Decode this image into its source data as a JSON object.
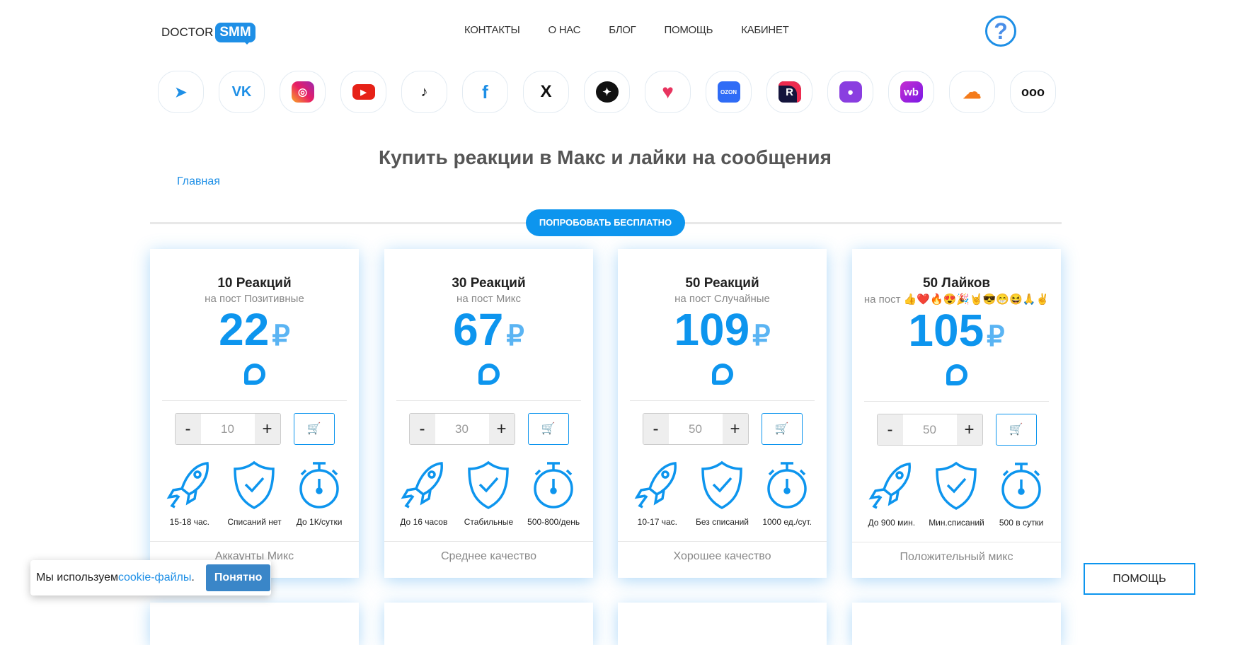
{
  "header": {
    "logo_left": "DOCTOR",
    "logo_right": "SMM",
    "nav": [
      "КОНТАКТЫ",
      "О НАС",
      "БЛОГ",
      "ПОМОЩЬ",
      "КАБИНЕТ"
    ],
    "help_icon": "question-circle-icon"
  },
  "socials": [
    "telegram",
    "vk",
    "instagram",
    "youtube",
    "tiktok",
    "facebook",
    "x",
    "dzen",
    "likee",
    "ozon",
    "rutube",
    "max",
    "wildberries",
    "soundcloud",
    "more"
  ],
  "socials_text": {
    "vk": "VK",
    "ozon": "OZON",
    "rutube": "R",
    "wb": "wb",
    "more": "ooo",
    "x": "X",
    "f": "f"
  },
  "page": {
    "title": "Купить реакции в Макс и лайки на сообщения",
    "breadcrumb": "Главная",
    "try_button": "ПОПРОБОВАТЬ БЕСПЛАТНО"
  },
  "cards": [
    {
      "title": "10 Реакций",
      "subtitle": "на пост Позитивные",
      "price": "22",
      "currency": "₽",
      "qty": "10",
      "features": [
        "15-18 час.",
        "Списаний нет",
        "До 1К/сутки"
      ],
      "footer": "Аккаунты Микс"
    },
    {
      "title": "30 Реакций",
      "subtitle": "на пост Микс",
      "price": "67",
      "currency": "₽",
      "qty": "30",
      "features": [
        "До 16 часов",
        "Стабильные",
        "500-800/день"
      ],
      "footer": "Среднее качество"
    },
    {
      "title": "50 Реакций",
      "subtitle": "на пост Случайные",
      "price": "109",
      "currency": "₽",
      "qty": "50",
      "features": [
        "10-17 час.",
        "Без списаний",
        "1000 ед./сут."
      ],
      "footer": "Хорошее качество"
    },
    {
      "title": "50 Лайков",
      "subtitle": "на пост 👍❤️🔥😍🎉🤘😎😁😆🙏✌️",
      "price": "105",
      "currency": "₽",
      "qty": "50",
      "features": [
        "До 900 мин.",
        "Мин.списаний",
        "500 в сутки"
      ],
      "footer": "Положительный микс"
    }
  ],
  "qty_controls": {
    "minus": "-",
    "plus": "+",
    "cart": "🛒"
  },
  "cookie": {
    "text": "Мы используем ",
    "link": "cookie-файлы",
    "dot": ".",
    "button": "Понятно"
  },
  "help_button": "ПОМОЩЬ",
  "colors": {
    "accent": "#0d95ee"
  }
}
